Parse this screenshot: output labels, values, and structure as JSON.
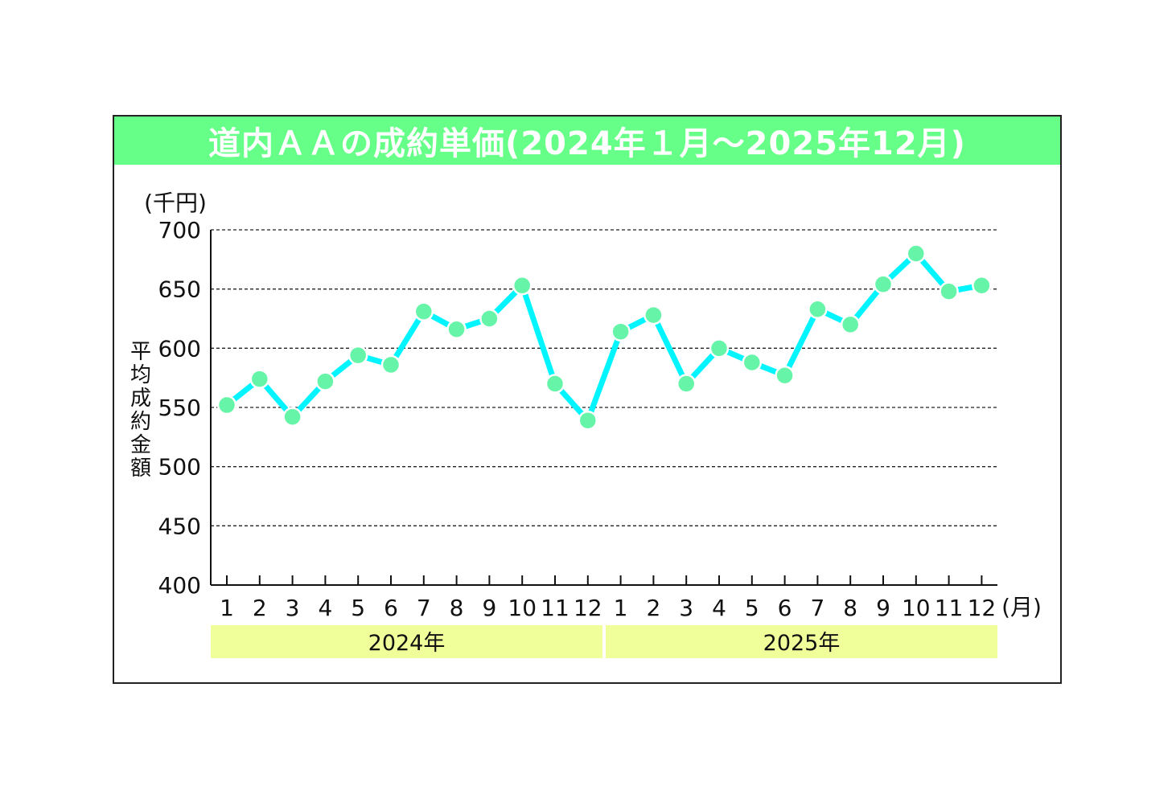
{
  "chart_data": {
    "type": "line",
    "title": "道内ＡＡの成約単価(2024年１月～2025年12月)",
    "ylabel": "平均成約金額",
    "yunit": "(千円)",
    "xunit": "(月)",
    "ylim": [
      400,
      700
    ],
    "yticks": [
      "700",
      "650",
      "600",
      "550",
      "500",
      "450",
      "400"
    ],
    "grid": true,
    "line_color": "#00f5ff",
    "marker_color": "#66f5a8",
    "title_bar_color": "#66ff88",
    "year_band_color": "#f1ff9a",
    "years": [
      {
        "label": "2024年",
        "months": [
          "1",
          "2",
          "3",
          "4",
          "5",
          "6",
          "7",
          "8",
          "9",
          "10",
          "11",
          "12"
        ]
      },
      {
        "label": "2025年",
        "months": [
          "1",
          "2",
          "3",
          "4",
          "5",
          "6",
          "7",
          "8",
          "9",
          "10",
          "11",
          "12"
        ]
      }
    ],
    "series": [
      {
        "values": [
          552,
          574,
          542,
          572,
          594,
          586,
          631,
          616,
          625,
          653,
          570,
          539,
          614,
          628,
          570,
          600,
          588,
          577,
          633,
          620,
          654,
          680,
          648,
          653
        ]
      }
    ]
  }
}
